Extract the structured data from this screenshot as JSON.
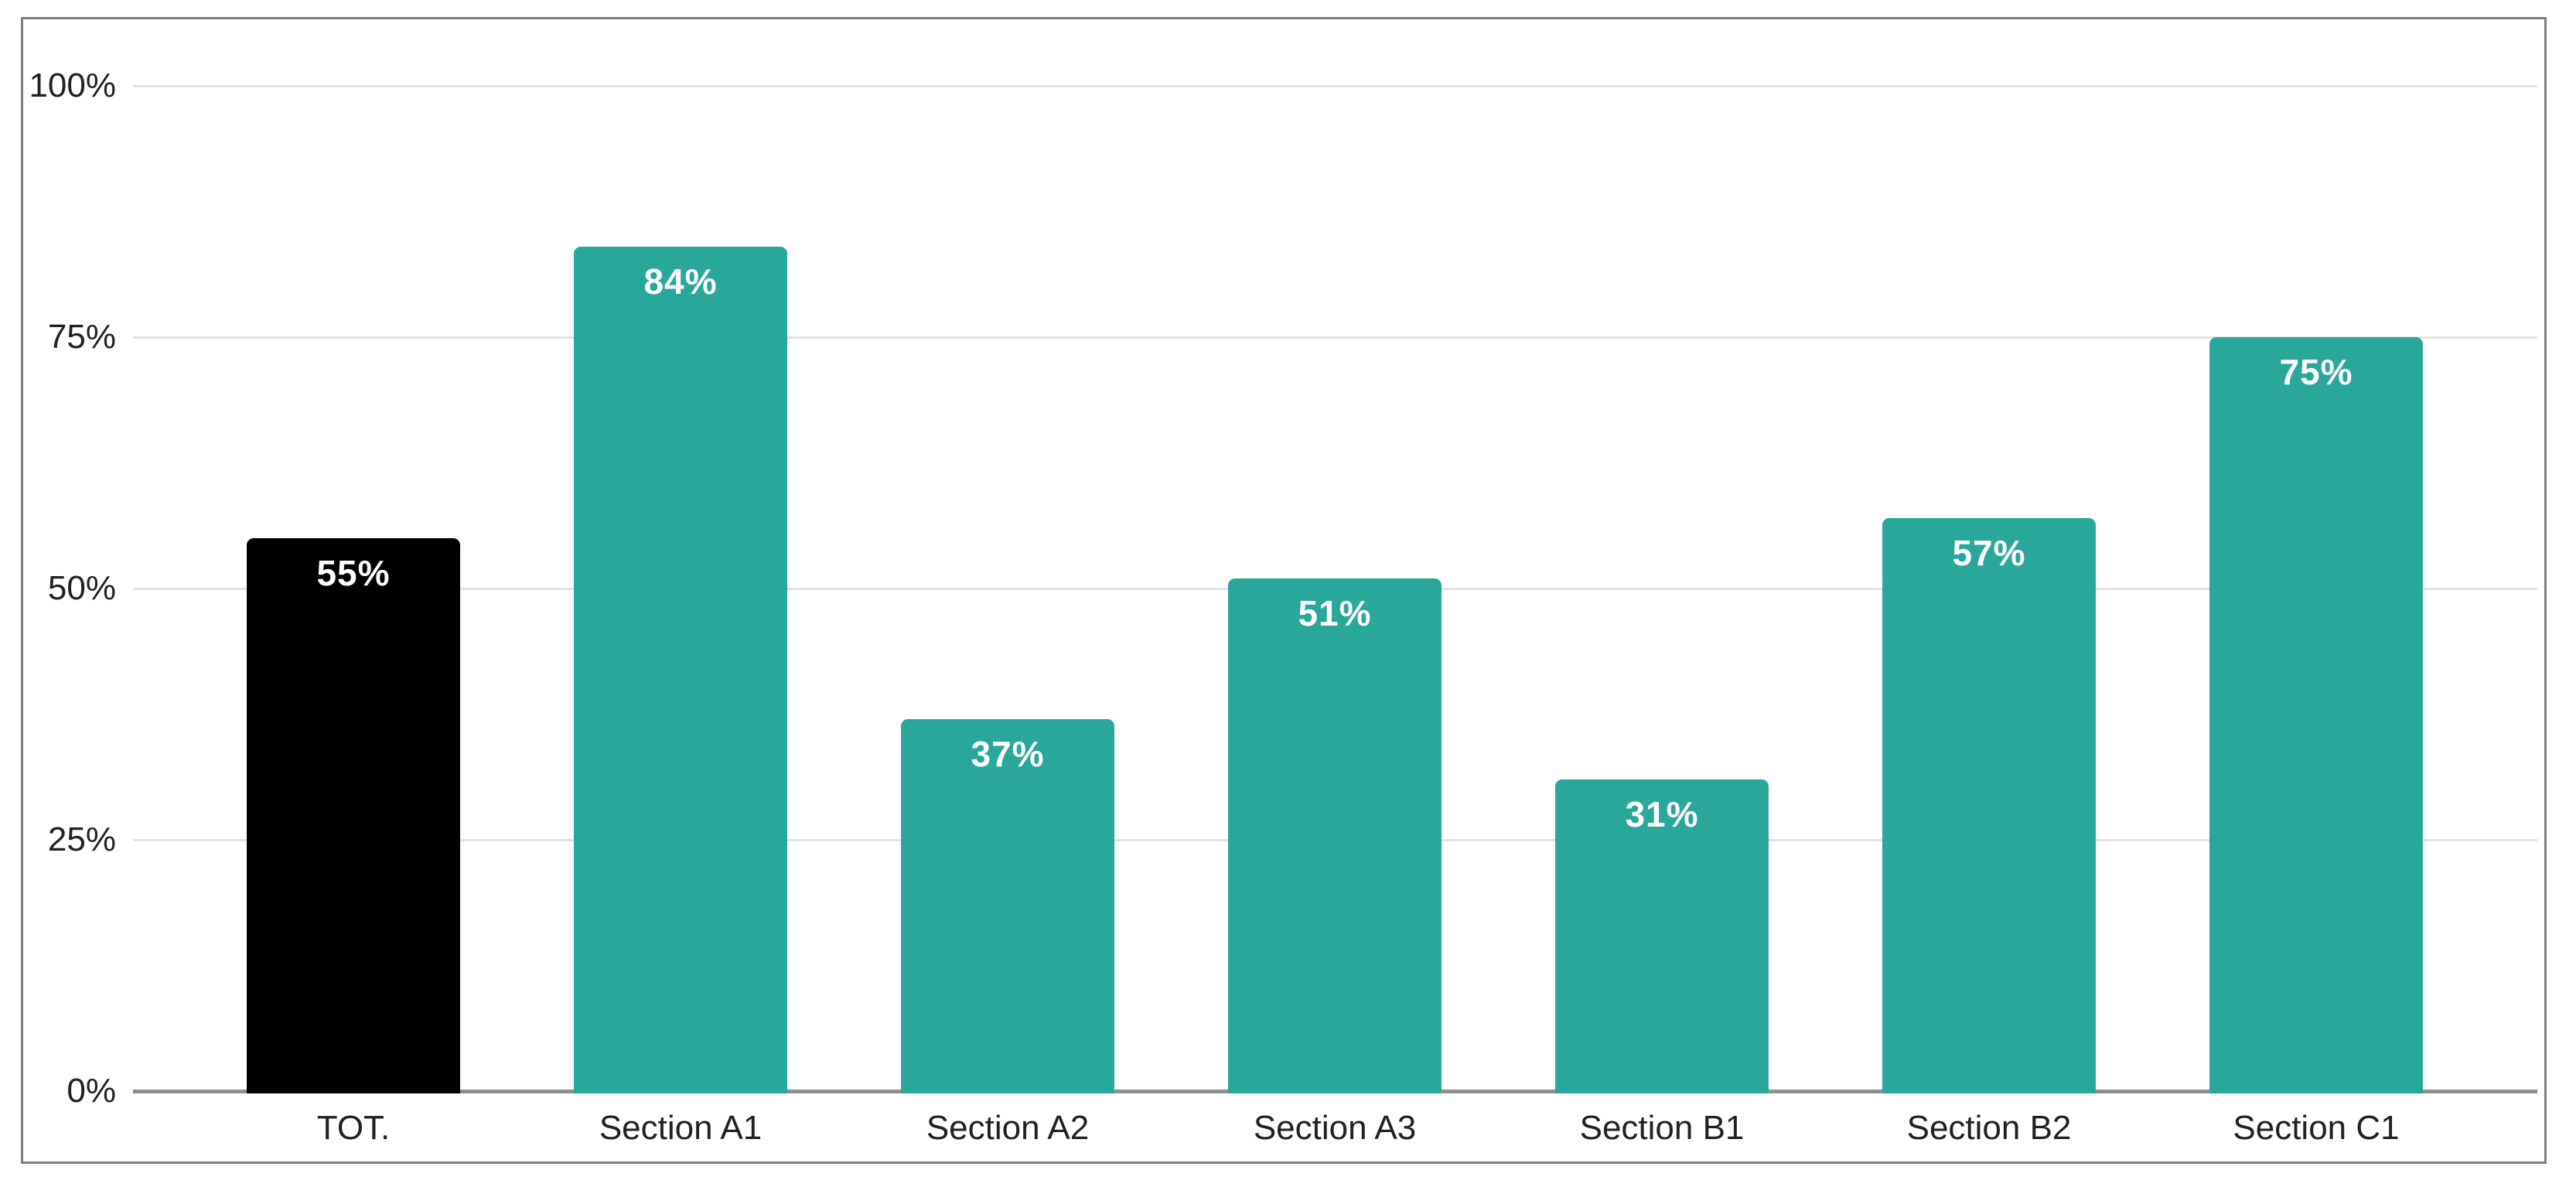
{
  "window": {
    "background": "#ffffff"
  },
  "chart_data": {
    "type": "bar",
    "title": "",
    "xlabel": "",
    "ylabel": "",
    "categories": [
      "TOT.",
      "Section A1",
      "Section A2",
      "Section A3",
      "Section B1",
      "Section B2",
      "Section C1"
    ],
    "values": [
      55,
      84,
      37,
      51,
      31,
      57,
      75
    ],
    "value_labels": [
      "55%",
      "84%",
      "37%",
      "51%",
      "31%",
      "57%",
      "75%"
    ],
    "bar_colors": [
      "#000000",
      "#2aa79b",
      "#2aa79b",
      "#2aa79b",
      "#2aa79b",
      "#2aa79b",
      "#2aa79b"
    ],
    "accent_color": "#2aa79b",
    "total_bar_color": "#000000",
    "ylim": [
      0,
      100
    ],
    "y_ticks": [
      {
        "label": "100%",
        "value": 100
      },
      {
        "label": "75%",
        "value": 75
      },
      {
        "label": "50%",
        "value": 50
      },
      {
        "label": "25%",
        "value": 25
      },
      {
        "label": "0%",
        "value": 0
      }
    ],
    "grid": true,
    "legend_position": "none",
    "bar_label_text_color": "#ffffff",
    "axis_text_color": "#212121",
    "gridline_color": "#e3e3e3",
    "axis_line_color": "#8f8f8f",
    "frame_border_color": "#7e7e7e"
  }
}
